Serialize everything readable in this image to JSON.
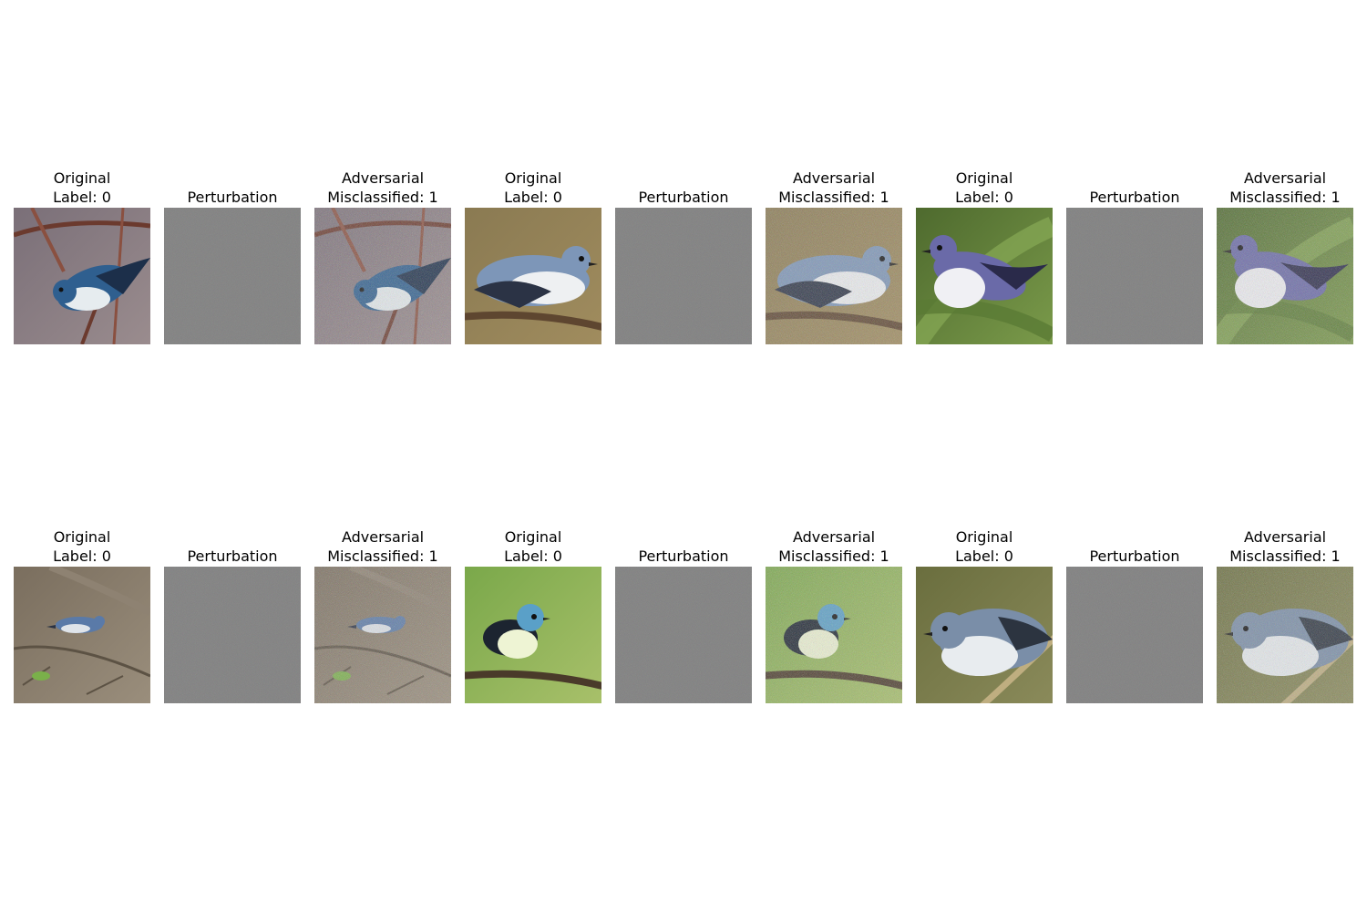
{
  "panels": [
    {
      "type": "original",
      "line1": "Original",
      "line2": "Label: 0",
      "scene": "twig-purple"
    },
    {
      "type": "perturbation",
      "line1": "Perturbation"
    },
    {
      "type": "adversarial",
      "line1": "Adversarial",
      "line2": "Misclassified: 1",
      "scene": "twig-purple"
    },
    {
      "type": "original",
      "line1": "Original",
      "line2": "Label: 0",
      "scene": "branch-tan"
    },
    {
      "type": "perturbation",
      "line1": "Perturbation"
    },
    {
      "type": "adversarial",
      "line1": "Adversarial",
      "line2": "Misclassified: 1",
      "scene": "branch-tan"
    },
    {
      "type": "original",
      "line1": "Original",
      "line2": "Label: 0",
      "scene": "leaves-green"
    },
    {
      "type": "perturbation",
      "line1": "Perturbation"
    },
    {
      "type": "adversarial",
      "line1": "Adversarial",
      "line2": "Misclassified: 1",
      "scene": "leaves-green"
    },
    {
      "type": "original",
      "line1": "Original",
      "line2": "Label: 0",
      "scene": "ground-litter"
    },
    {
      "type": "perturbation",
      "line1": "Perturbation"
    },
    {
      "type": "adversarial",
      "line1": "Adversarial",
      "line2": "Misclassified: 1",
      "scene": "ground-litter"
    },
    {
      "type": "original",
      "line1": "Original",
      "line2": "Label: 0",
      "scene": "branch-lightgreen"
    },
    {
      "type": "perturbation",
      "line1": "Perturbation"
    },
    {
      "type": "adversarial",
      "line1": "Adversarial",
      "line2": "Misclassified: 1",
      "scene": "branch-lightgreen"
    },
    {
      "type": "original",
      "line1": "Original",
      "line2": "Label: 0",
      "scene": "stem-olive"
    },
    {
      "type": "perturbation",
      "line1": "Perturbation"
    },
    {
      "type": "adversarial",
      "line1": "Adversarial",
      "line2": "Misclassified: 1",
      "scene": "stem-olive"
    }
  ]
}
